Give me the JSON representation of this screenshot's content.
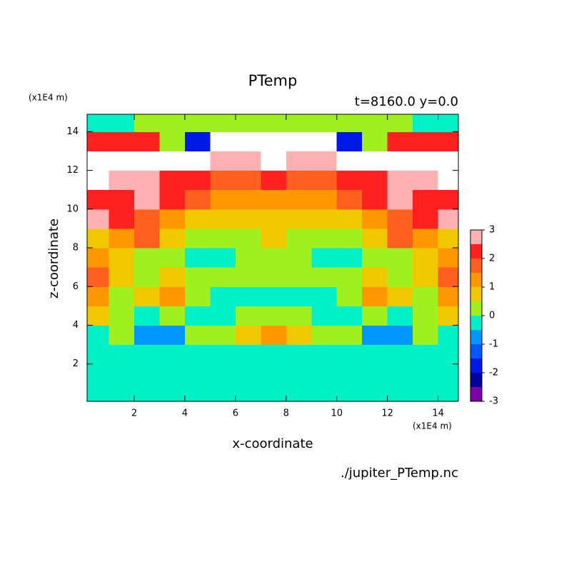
{
  "chart_data": {
    "type": "contour",
    "title": "PTemp",
    "subtitle": "t=8160.0 y=0.0",
    "x_label": "x-coordinate",
    "y_label": "z-coordinate",
    "x_unit": "(x1E4 m)",
    "y_unit": "(x1E4 m)",
    "source": "./jupiter_PTemp.nc",
    "xlim": [
      0.14,
      14.8
    ],
    "ylim": [
      0.07,
      14.9
    ],
    "xticks": [
      2,
      4,
      6,
      8,
      10,
      12,
      14
    ],
    "yticks": [
      2,
      4,
      6,
      8,
      10,
      12,
      14
    ],
    "x": [
      0.5,
      1.5,
      2.5,
      3.5,
      4.5,
      5.5,
      6.5,
      7.5,
      8.5,
      9.5,
      10.5,
      11.5,
      12.5,
      13.5,
      14.5
    ],
    "y": [
      0.5,
      1.5,
      2.5,
      3.5,
      4.5,
      5.5,
      6.5,
      7.5,
      8.5,
      9.5,
      10.5,
      11.5,
      12.5,
      13.5,
      14.5
    ],
    "z": [
      [
        -0.2,
        -0.2,
        -0.2,
        -0.2,
        -0.2,
        -0.2,
        -0.2,
        -0.2,
        -0.2,
        -0.2,
        -0.2,
        -0.2,
        -0.2,
        -0.2,
        -0.2
      ],
      [
        -0.2,
        -0.2,
        -0.2,
        -0.2,
        -0.2,
        -0.2,
        -0.2,
        -0.2,
        -0.2,
        -0.2,
        -0.2,
        -0.2,
        -0.2,
        -0.2,
        -0.2
      ],
      [
        -0.2,
        -0.2,
        -0.2,
        -0.2,
        -0.2,
        -0.2,
        -0.2,
        -0.2,
        -0.2,
        -0.2,
        -0.2,
        -0.2,
        -0.2,
        -0.2,
        -0.2
      ],
      [
        -0.2,
        0.2,
        -0.8,
        -0.7,
        0.2,
        0.2,
        0.7,
        1.3,
        0.7,
        0.2,
        0.2,
        -0.7,
        -0.8,
        0.2,
        -0.2
      ],
      [
        0.7,
        0.2,
        -0.2,
        0.2,
        -0.2,
        -0.2,
        0.2,
        0.2,
        0.2,
        -0.2,
        -0.2,
        0.2,
        -0.2,
        0.2,
        0.7
      ],
      [
        1.3,
        0.3,
        0.7,
        1.2,
        0.2,
        -0.2,
        -0.2,
        -0.2,
        -0.2,
        -0.2,
        0.2,
        1.2,
        0.7,
        0.3,
        1.3
      ],
      [
        1.8,
        0.7,
        0.3,
        0.7,
        0.2,
        0.2,
        0.2,
        0.2,
        0.2,
        0.2,
        0.2,
        0.7,
        0.3,
        0.7,
        1.8
      ],
      [
        1.3,
        0.7,
        0.2,
        0.2,
        -0.2,
        -0.2,
        0.2,
        0.2,
        0.2,
        -0.2,
        -0.2,
        0.2,
        0.2,
        0.7,
        1.3
      ],
      [
        0.7,
        1.2,
        1.8,
        0.7,
        0.2,
        0.2,
        0.2,
        0.7,
        0.2,
        0.2,
        0.2,
        0.7,
        1.8,
        1.2,
        0.7
      ],
      [
        2.8,
        2.3,
        1.8,
        1.3,
        0.7,
        0.7,
        0.7,
        0.7,
        0.7,
        0.7,
        0.7,
        1.3,
        1.8,
        2.3,
        2.8
      ],
      [
        2.3,
        2.3,
        2.8,
        2.3,
        1.8,
        1.3,
        1.3,
        1.3,
        1.3,
        1.3,
        1.8,
        2.3,
        2.8,
        2.3,
        2.3
      ],
      [
        3.5,
        2.8,
        2.8,
        2.3,
        2.3,
        1.8,
        1.8,
        2.3,
        1.8,
        1.8,
        2.3,
        2.3,
        2.8,
        2.8,
        3.5
      ],
      [
        3.5,
        3.5,
        3.5,
        3.5,
        3.5,
        2.8,
        2.8,
        3.5,
        2.8,
        2.8,
        3.5,
        3.5,
        3.5,
        3.5,
        3.5
      ],
      [
        2.3,
        2.3,
        2.3,
        0.2,
        -1.8,
        3.5,
        3.5,
        3.5,
        3.5,
        3.5,
        -1.8,
        0.2,
        2.3,
        2.3,
        2.3
      ],
      [
        -0.2,
        -0.2,
        0.2,
        0.2,
        0.2,
        0.2,
        0.2,
        0.2,
        0.2,
        0.2,
        0.2,
        0.2,
        0.2,
        -0.2,
        -0.2
      ]
    ],
    "levels": [
      -3,
      -2.5,
      -2,
      -1.5,
      -1,
      -0.5,
      0,
      0.5,
      1,
      1.5,
      2,
      2.5,
      3
    ],
    "colors": [
      "#8000a8",
      "#8000a8",
      "#0000a0",
      "#0018e8",
      "#0058ff",
      "#0098ff",
      "#00f0c8",
      "#a0f020",
      "#f0c800",
      "#ff9800",
      "#ff6020",
      "#ff2020",
      "#ffb0b0",
      "#ffffff"
    ],
    "colorbar_ticks": [
      -3,
      -2,
      -1,
      0,
      1,
      2,
      3
    ]
  }
}
